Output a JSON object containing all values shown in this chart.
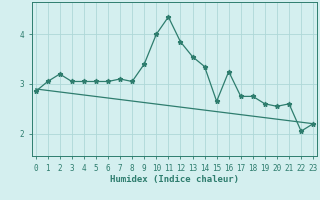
{
  "xlabel": "Humidex (Indice chaleur)",
  "background_color": "#d4efef",
  "grid_color": "#aed8d8",
  "line_color": "#2e7d6e",
  "x_values": [
    0,
    1,
    2,
    3,
    4,
    5,
    6,
    7,
    8,
    9,
    10,
    11,
    12,
    13,
    14,
    15,
    16,
    17,
    18,
    19,
    20,
    21,
    22,
    23
  ],
  "y_values": [
    2.85,
    3.05,
    3.2,
    3.05,
    3.05,
    3.05,
    3.05,
    3.1,
    3.05,
    3.4,
    4.0,
    4.35,
    3.85,
    3.55,
    3.35,
    2.65,
    3.25,
    2.75,
    2.75,
    2.6,
    2.55,
    2.6,
    2.05,
    2.2
  ],
  "trend_y_start": 2.9,
  "trend_y_end": 2.2,
  "ylim": [
    1.55,
    4.65
  ],
  "yticks": [
    2,
    3,
    4
  ],
  "xlim": [
    -0.3,
    23.3
  ]
}
